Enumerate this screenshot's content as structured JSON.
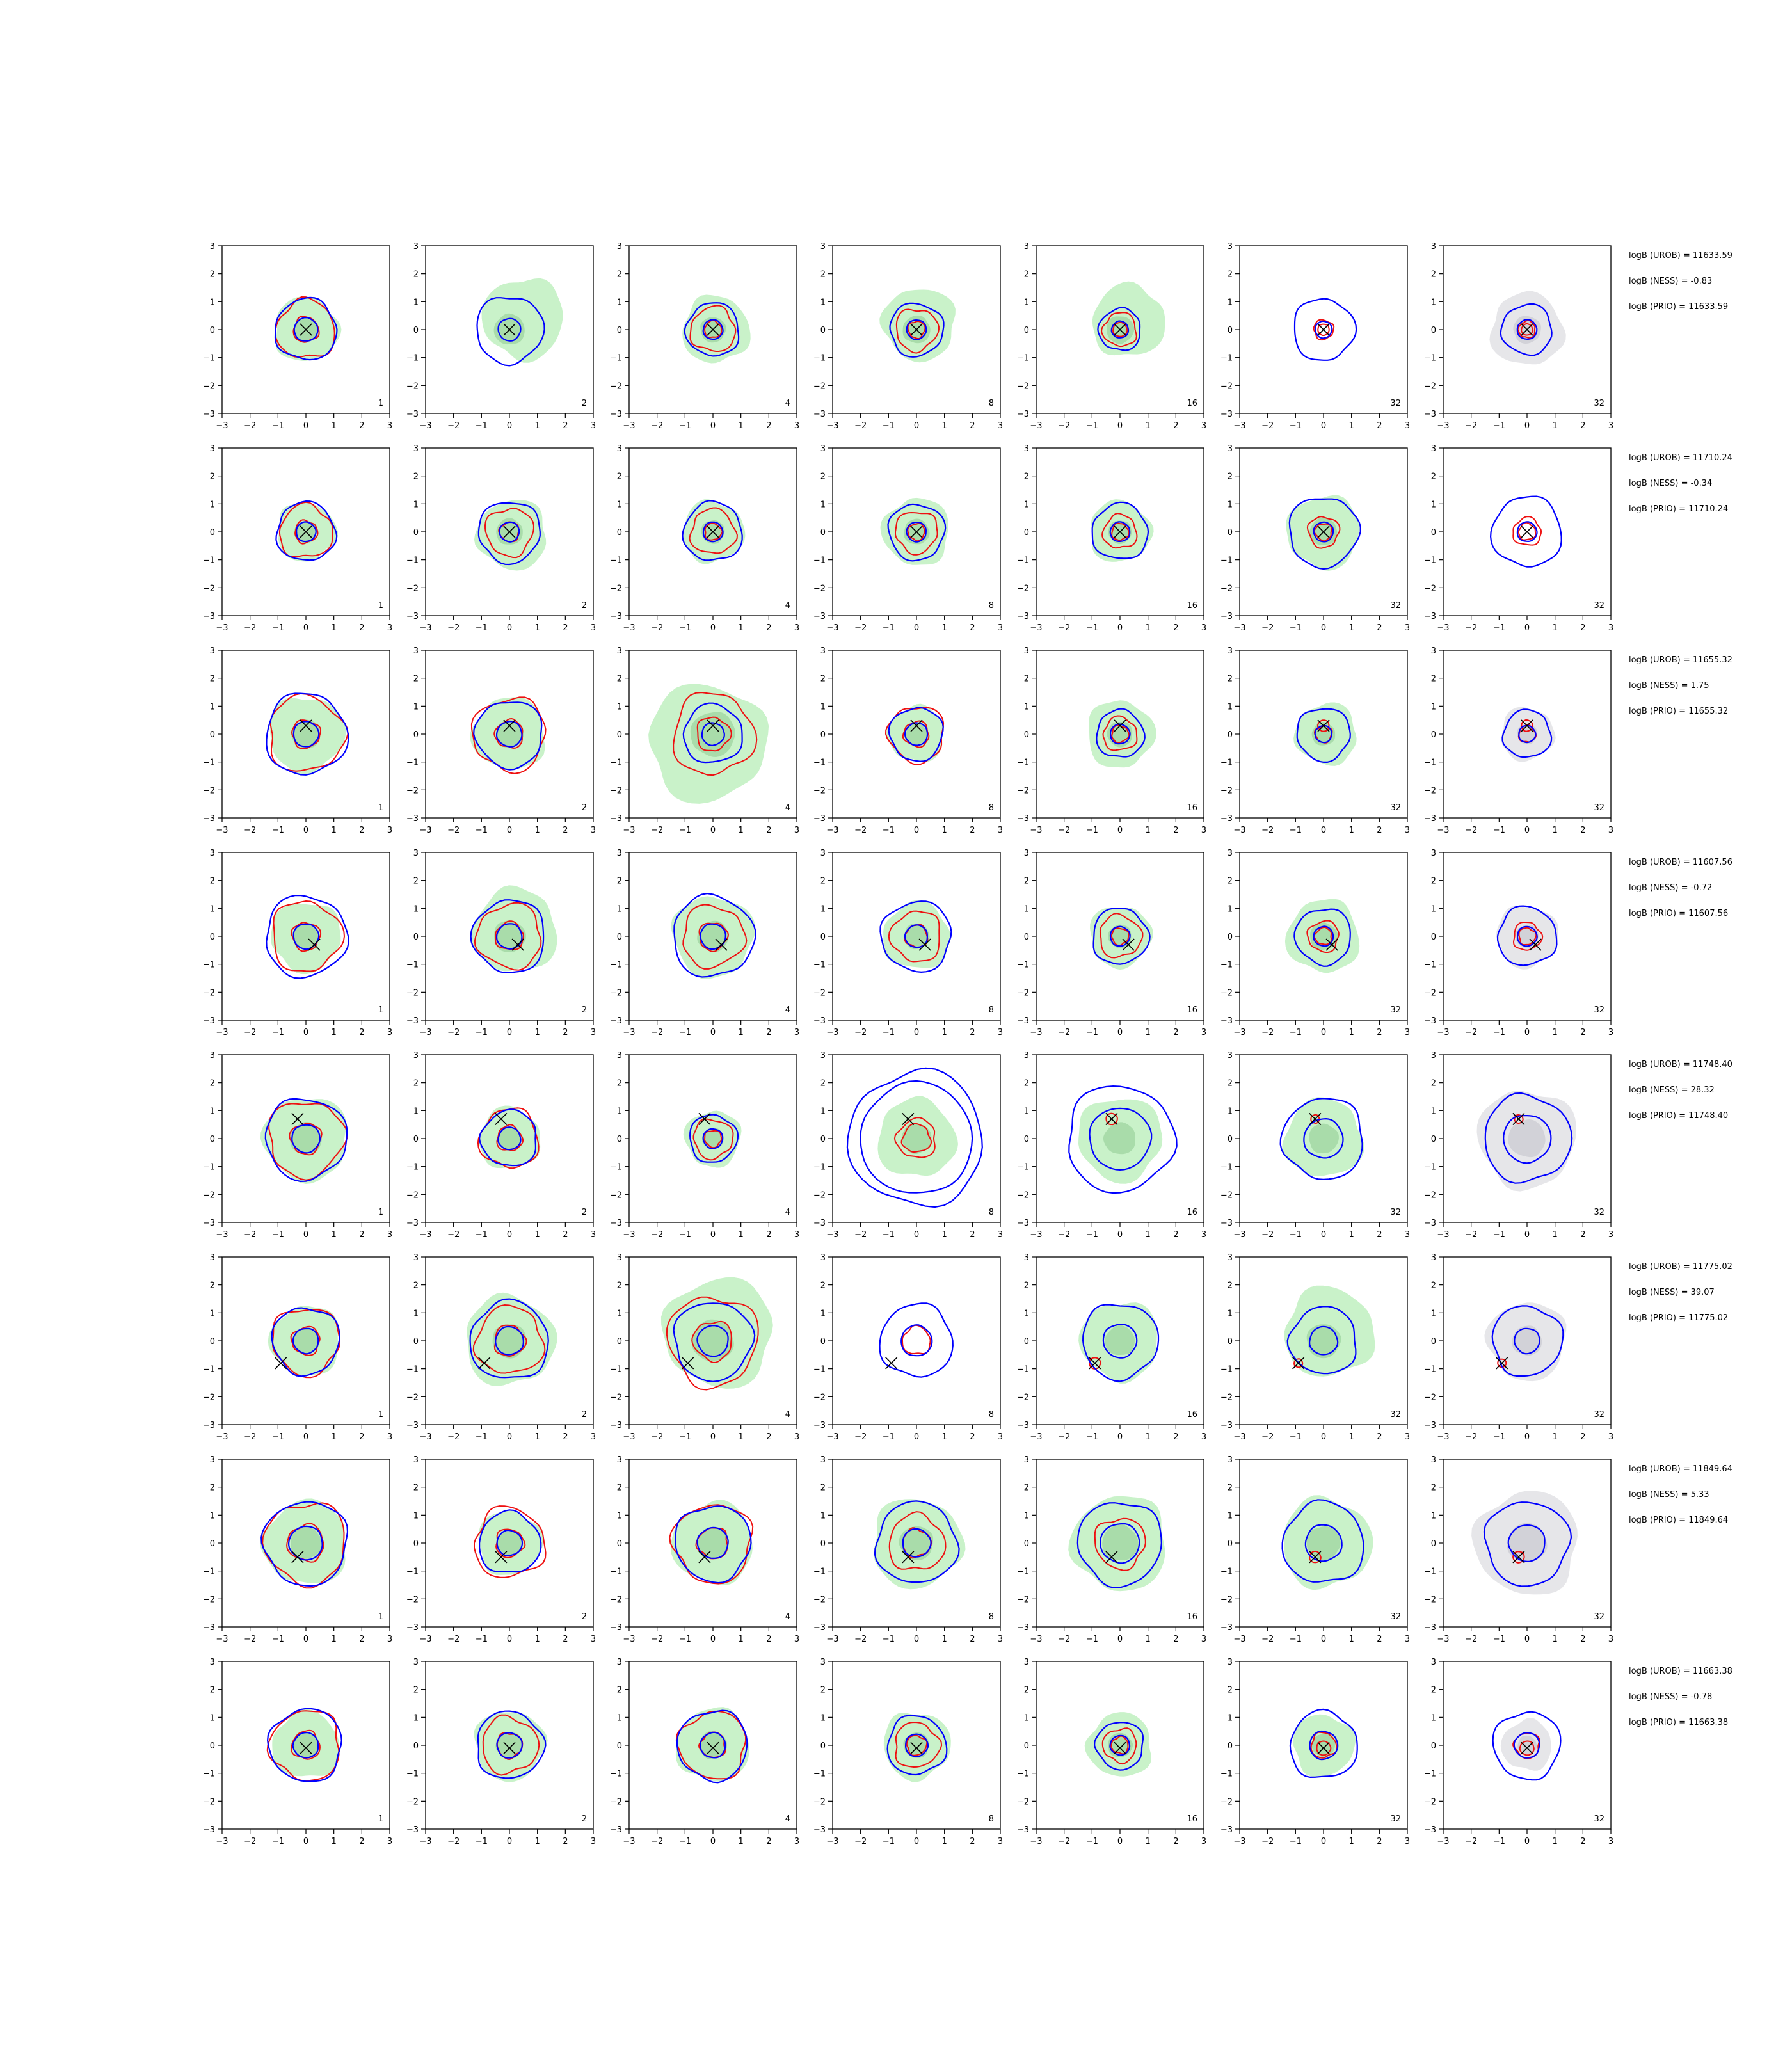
{
  "chart_data": {
    "type": "contour-grid",
    "xlim": [
      -3,
      3
    ],
    "ylim": [
      -3,
      3
    ],
    "xticks": [
      -3,
      -2,
      -1,
      0,
      1,
      2,
      3
    ],
    "yticks": [
      -3,
      -2,
      -1,
      0,
      1,
      2,
      3
    ],
    "column_labels": [
      "1",
      "2",
      "4",
      "8",
      "16",
      "32",
      "32"
    ],
    "colors": {
      "blue_contour": "#0000ff",
      "red_contour": "#ee1111",
      "fill_green": "#c9f2c9",
      "fill_green_inner": "#a9dcaa",
      "fill_gray": "#e6e6e9",
      "fill_gray_inner": "#d2d2d8",
      "marker": "#000000"
    },
    "rows": [
      {
        "annotations": [
          "logB (UROB) = 11633.59",
          "logB (NESS) = -0.83",
          "logB (PRIO) = 11633.59"
        ],
        "marker": [
          0.0,
          0.0
        ],
        "panels": [
          {
            "blue": [
              1.1,
              0.42
            ],
            "red": [
              1.05,
              0.45
            ],
            "fill": 1.15,
            "fill_dx": 0.0,
            "fill_dy": 0.0
          },
          {
            "blue": [
              1.2,
              0.4
            ],
            "red": [],
            "fill": 1.45,
            "fill_dx": 0.5,
            "fill_dy": 0.4
          },
          {
            "blue": [
              0.95,
              0.35
            ],
            "red": [
              0.8,
              0.3
            ],
            "fill": 1.2,
            "fill_dx": 0.1,
            "fill_dy": 0.0
          },
          {
            "blue": [
              0.95,
              0.35
            ],
            "red": [
              0.75,
              0.3
            ],
            "fill": 1.3,
            "fill_dx": 0.1,
            "fill_dy": 0.2
          },
          {
            "blue": [
              0.75,
              0.3
            ],
            "red": [
              0.6,
              0.25
            ],
            "fill": 1.3,
            "fill_dx": 0.3,
            "fill_dy": 0.3
          },
          {
            "blue": [
              1.1,
              0.3
            ],
            "red": [
              0.35,
              0.2
            ],
            "fill": 0.0,
            "fill_dx": 0.0,
            "fill_dy": 0.0
          },
          {
            "blue": [
              0.9,
              0.35
            ],
            "red": [
              0.3,
              0.2
            ],
            "fill": 1.3,
            "fill_dx": 0.0,
            "fill_dy": 0.0,
            "gray": true
          }
        ]
      },
      {
        "annotations": [
          "logB (UROB) = 11710.24",
          "logB (NESS) = -0.34",
          "logB (PRIO) = 11710.24"
        ],
        "marker": [
          0.0,
          0.0
        ],
        "panels": [
          {
            "blue": [
              1.05,
              0.35
            ],
            "red": [
              0.95,
              0.4
            ],
            "fill": 1.05,
            "fill_dx": 0.0,
            "fill_dy": 0.0
          },
          {
            "blue": [
              1.1,
              0.35
            ],
            "red": [
              0.85,
              0.35
            ],
            "fill": 1.25,
            "fill_dx": 0.1,
            "fill_dy": -0.1
          },
          {
            "blue": [
              1.05,
              0.35
            ],
            "red": [
              0.8,
              0.3
            ],
            "fill": 1.1,
            "fill_dx": 0.0,
            "fill_dy": 0.0
          },
          {
            "blue": [
              1.0,
              0.35
            ],
            "red": [
              0.75,
              0.3
            ],
            "fill": 1.2,
            "fill_dx": 0.0,
            "fill_dy": 0.0
          },
          {
            "blue": [
              1.0,
              0.35
            ],
            "red": [
              0.6,
              0.3
            ],
            "fill": 1.1,
            "fill_dx": 0.0,
            "fill_dy": 0.0
          },
          {
            "blue": [
              1.25,
              0.35
            ],
            "red": [
              0.55,
              0.3
            ],
            "fill": 1.3,
            "fill_dx": 0.0,
            "fill_dy": 0.0
          },
          {
            "blue": [
              1.25,
              0.35
            ],
            "red": [
              0.5,
              0.3
            ],
            "fill": 0.0,
            "fill_dx": 0.0,
            "fill_dy": 0.0
          }
        ]
      },
      {
        "annotations": [
          "logB (UROB) = 11655.32",
          "logB (NESS) = 1.75",
          "logB (PRIO) = 11655.32"
        ],
        "marker": [
          0.0,
          0.3
        ],
        "panels": [
          {
            "blue": [
              1.45,
              0.45
            ],
            "red": [
              1.35,
              0.5
            ],
            "fill": 1.35,
            "fill_dx": 0.0,
            "fill_dy": 0.0
          },
          {
            "blue": [
              1.2,
              0.45
            ],
            "red": [
              1.3,
              0.5
            ],
            "fill": 1.3,
            "fill_dx": 0.0,
            "fill_dy": 0.0
          },
          {
            "blue": [
              1.05,
              0.4
            ],
            "red": [
              1.45,
              0.6
            ],
            "fill": 2.1,
            "fill_dx": -0.2,
            "fill_dy": -0.3
          },
          {
            "blue": [
              0.95,
              0.4
            ],
            "red": [
              1.0,
              0.45
            ],
            "fill": 1.0,
            "fill_dx": 0.0,
            "fill_dy": 0.0
          },
          {
            "blue": [
              0.85,
              0.35
            ],
            "red": [
              0.6,
              0.3
            ],
            "fill": 1.2,
            "fill_dx": 0.0,
            "fill_dy": 0.0
          },
          {
            "blue": [
              0.95,
              0.3
            ],
            "red": [
              0.3,
              0.2
            ],
            "fill": 1.1,
            "fill_dx": 0.1,
            "fill_dy": 0.0
          },
          {
            "blue": [
              0.85,
              0.3
            ],
            "red": [
              0.3,
              0.2
            ],
            "fill": 0.95,
            "fill_dx": 0.0,
            "fill_dy": 0.0,
            "gray": true
          }
        ]
      },
      {
        "annotations": [
          "logB (UROB) = 11607.56",
          "logB (NESS) = -0.72",
          "logB (PRIO) = 11607.56"
        ],
        "marker": [
          0.3,
          -0.3
        ],
        "panels": [
          {
            "blue": [
              1.45,
              0.45
            ],
            "red": [
              1.25,
              0.5
            ],
            "fill": 1.25,
            "fill_dx": 0.0,
            "fill_dy": 0.0
          },
          {
            "blue": [
              1.3,
              0.45
            ],
            "red": [
              1.15,
              0.5
            ],
            "fill": 1.5,
            "fill_dx": 0.2,
            "fill_dy": 0.2
          },
          {
            "blue": [
              1.45,
              0.45
            ],
            "red": [
              1.1,
              0.5
            ],
            "fill": 1.45,
            "fill_dx": 0.0,
            "fill_dy": 0.0
          },
          {
            "blue": [
              1.25,
              0.4
            ],
            "red": [
              0.9,
              0.4
            ],
            "fill": 1.2,
            "fill_dx": 0.0,
            "fill_dy": 0.0
          },
          {
            "blue": [
              1.0,
              0.35
            ],
            "red": [
              0.75,
              0.3
            ],
            "fill": 1.1,
            "fill_dx": 0.0,
            "fill_dy": 0.0
          },
          {
            "blue": [
              1.0,
              0.35
            ],
            "red": [
              0.55,
              0.3
            ],
            "fill": 1.3,
            "fill_dx": 0.0,
            "fill_dy": 0.0
          },
          {
            "blue": [
              1.05,
              0.35
            ],
            "red": [
              0.5,
              0.3
            ],
            "fill": 1.1,
            "fill_dx": 0.0,
            "fill_dy": 0.0,
            "gray": true
          }
        ]
      },
      {
        "annotations": [
          "logB (UROB) = 11748.40",
          "logB (NESS) = 28.32",
          "logB (PRIO) = 11748.40"
        ],
        "marker": [
          -0.3,
          0.7
        ],
        "panels": [
          {
            "blue": [
              1.45,
              0.5
            ],
            "red": [
              1.35,
              0.55
            ],
            "fill": 1.5,
            "fill_dx": 0.0,
            "fill_dy": 0.0
          },
          {
            "blue": [
              1.0,
              0.4
            ],
            "red": [
              1.05,
              0.45
            ],
            "fill": 1.1,
            "fill_dx": 0.0,
            "fill_dy": 0.0
          },
          {
            "blue": [
              0.85,
              0.35
            ],
            "red": [
              0.7,
              0.3
            ],
            "fill": 1.0,
            "fill_dx": 0.0,
            "fill_dy": 0.0
          },
          {
            "blue": [
              2.4,
              2.0
            ],
            "red": [
              0.7,
              0.5
            ],
            "fill": 1.4,
            "fill_dx": 0.0,
            "fill_dy": 0.0
          },
          {
            "blue": [
              1.9,
              1.1
            ],
            "red": [
              0.2
            ],
            "fill": 1.5,
            "fill_dx": 0.0,
            "fill_dy": 0.0
          },
          {
            "blue": [
              1.45,
              0.7
            ],
            "red": [
              0.15
            ],
            "fill": 1.4,
            "fill_dx": 0.0,
            "fill_dy": 0.0
          },
          {
            "blue": [
              1.55,
              0.85
            ],
            "red": [
              0.15
            ],
            "fill": 1.75,
            "fill_dx": 0.0,
            "fill_dy": 0.0,
            "gray": true
          }
        ]
      },
      {
        "annotations": [
          "logB (UROB) = 11775.02",
          "logB (NESS) = 39.07",
          "logB (PRIO) = 11775.02"
        ],
        "marker": [
          -0.9,
          -0.8
        ],
        "panels": [
          {
            "blue": [
              1.2,
              0.45
            ],
            "red": [
              1.2,
              0.5
            ],
            "fill": 1.25,
            "fill_dx": 0.0,
            "fill_dy": 0.0
          },
          {
            "blue": [
              1.4,
              0.5
            ],
            "red": [
              1.2,
              0.55
            ],
            "fill": 1.6,
            "fill_dx": 0.0,
            "fill_dy": 0.0
          },
          {
            "blue": [
              1.4,
              0.55
            ],
            "red": [
              1.6,
              0.7
            ],
            "fill": 1.95,
            "fill_dx": 0.2,
            "fill_dy": 0.3
          },
          {
            "blue": [
              1.3,
              0.55
            ],
            "red": [
              0.5
            ],
            "fill": 0.0,
            "fill_dx": 0.0,
            "fill_dy": 0.0
          },
          {
            "blue": [
              1.35,
              0.6
            ],
            "red": [
              0.2
            ],
            "fill": 1.4,
            "fill_dx": 0.0,
            "fill_dy": 0.0
          },
          {
            "blue": [
              1.2,
              0.5
            ],
            "red": [
              0.15
            ],
            "fill": 1.6,
            "fill_dx": 0.2,
            "fill_dy": 0.3
          },
          {
            "blue": [
              1.25,
              0.45
            ],
            "red": [
              0.15
            ],
            "fill": 1.4,
            "fill_dx": 0.0,
            "fill_dy": 0.0,
            "gray": true
          }
        ]
      },
      {
        "annotations": [
          "logB (UROB) = 11849.64",
          "logB (NESS) = 5.33",
          "logB (PRIO) = 11849.64"
        ],
        "marker": [
          -0.3,
          -0.5
        ],
        "panels": [
          {
            "blue": [
              1.5,
              0.6
            ],
            "red": [
              1.45,
              0.65
            ],
            "fill": 1.5,
            "fill_dx": 0.0,
            "fill_dy": 0.0
          },
          {
            "blue": [
              1.1,
              0.45
            ],
            "red": [
              1.25,
              0.5
            ],
            "fill": 1.15,
            "fill_dx": 0.0,
            "fill_dy": 0.0
          },
          {
            "blue": [
              1.35,
              0.55
            ],
            "red": [
              1.4,
              0.55
            ],
            "fill": 1.45,
            "fill_dx": 0.0,
            "fill_dy": 0.0
          },
          {
            "blue": [
              1.45,
              0.5
            ],
            "red": [
              1.0,
              0.5
            ],
            "fill": 1.6,
            "fill_dx": 0.0,
            "fill_dy": 0.0
          },
          {
            "blue": [
              1.5,
              0.7
            ],
            "red": [
              0.9
            ],
            "fill": 1.7,
            "fill_dx": 0.0,
            "fill_dy": 0.0
          },
          {
            "blue": [
              1.45,
              0.65
            ],
            "red": [
              0.2
            ],
            "fill": 1.6,
            "fill_dx": 0.1,
            "fill_dy": 0.0
          },
          {
            "blue": [
              1.5,
              0.65
            ],
            "red": [
              0.2
            ],
            "fill": 1.85,
            "fill_dx": 0.0,
            "fill_dy": 0.0,
            "gray": true
          }
        ]
      },
      {
        "annotations": [
          "logB (UROB) = 11663.38",
          "logB (NESS) = -0.78",
          "logB (PRIO) = 11663.38"
        ],
        "marker": [
          0.0,
          -0.1
        ],
        "panels": [
          {
            "blue": [
              1.3,
              0.45
            ],
            "red": [
              1.25,
              0.5
            ],
            "fill": 1.2,
            "fill_dx": 0.0,
            "fill_dy": 0.0
          },
          {
            "blue": [
              1.2,
              0.45
            ],
            "red": [
              1.0,
              0.45
            ],
            "fill": 1.25,
            "fill_dx": 0.0,
            "fill_dy": 0.0
          },
          {
            "blue": [
              1.25,
              0.45
            ],
            "red": [
              1.2,
              0.45
            ],
            "fill": 1.3,
            "fill_dx": 0.0,
            "fill_dy": 0.0
          },
          {
            "blue": [
              1.05,
              0.4
            ],
            "red": [
              0.8,
              0.35
            ],
            "fill": 1.2,
            "fill_dx": 0.0,
            "fill_dy": 0.0
          },
          {
            "blue": [
              0.85,
              0.35
            ],
            "red": [
              0.6,
              0.3
            ],
            "fill": 1.15,
            "fill_dx": 0.0,
            "fill_dy": 0.0
          },
          {
            "blue": [
              1.2,
              0.5
            ],
            "red": [
              0.45,
              0.25
            ],
            "fill": 1.1,
            "fill_dx": 0.0,
            "fill_dy": 0.0
          },
          {
            "blue": [
              1.2,
              0.45
            ],
            "red": [
              0.45,
              0.25
            ],
            "fill": 0.9,
            "fill_dx": 0.0,
            "fill_dy": 0.0,
            "gray": true
          }
        ]
      }
    ]
  }
}
